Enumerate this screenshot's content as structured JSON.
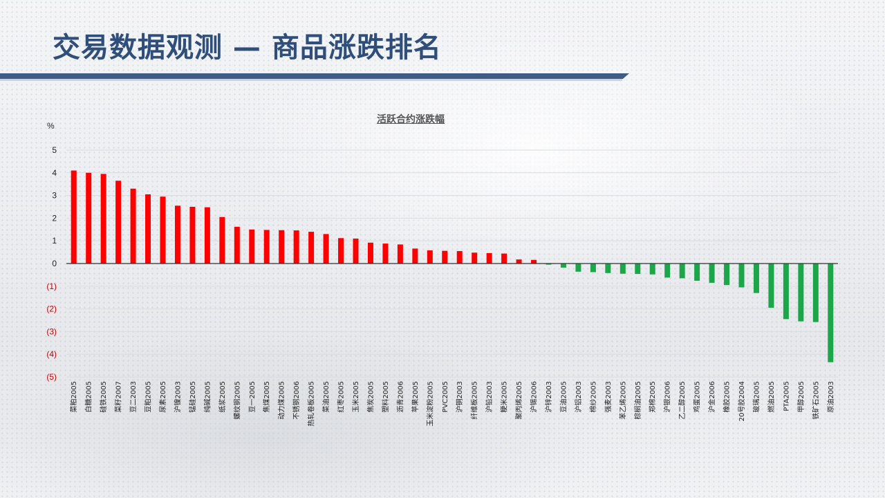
{
  "page": {
    "title": "交易数据观测 — 商品涨跌排名"
  },
  "colors": {
    "up": "#ff0000",
    "down": "#1ca64a",
    "title": "#2f4f7a",
    "negative_tick": "#c00000"
  },
  "chart_data": {
    "type": "bar",
    "title": "活跃合约涨跌幅",
    "ylabel": "%",
    "xlabel": "",
    "ylim": [
      -5,
      5
    ],
    "yticks": [
      {
        "value": 5,
        "label": "5"
      },
      {
        "value": 4,
        "label": "4"
      },
      {
        "value": 3,
        "label": "3"
      },
      {
        "value": 2,
        "label": "2"
      },
      {
        "value": 1,
        "label": "1"
      },
      {
        "value": 0,
        "label": "0"
      },
      {
        "value": -1,
        "label": "(1)"
      },
      {
        "value": -2,
        "label": "(2)"
      },
      {
        "value": -3,
        "label": "(3)"
      },
      {
        "value": -4,
        "label": "(4)"
      },
      {
        "value": -5,
        "label": "(5)"
      }
    ],
    "grid": true,
    "categories": [
      "菜粕2005",
      "白糖2005",
      "硅铁2005",
      "菜籽2007",
      "豆二2003",
      "豆粕2005",
      "尿素2005",
      "沪镍2003",
      "锰硅2005",
      "纯碱2005",
      "纸浆2005",
      "螺纹钢2005",
      "豆一2005",
      "焦煤2005",
      "动力煤2005",
      "不锈钢2006",
      "热轧卷板2005",
      "菜油2005",
      "红枣2005",
      "玉米2005",
      "焦炭2005",
      "塑料2005",
      "沥青2006",
      "苹果2005",
      "玉米淀粉2005",
      "PVC2005",
      "沪铜2003",
      "纤维板2005",
      "沪铅2003",
      "粳米2005",
      "聚丙烯2005",
      "沪锡2006",
      "沪锌2003",
      "豆油2005",
      "沪铝2003",
      "棉纱2005",
      "强麦2003",
      "苯乙烯2005",
      "棕榈油2005",
      "郑棉2005",
      "沪银2006",
      "乙二醇2005",
      "鸡蛋2005",
      "沪金2006",
      "橡胶2005",
      "20号胶2004",
      "玻璃2005",
      "燃油2005",
      "PTA2005",
      "甲醇2005",
      "铁矿石2005",
      "原油2003"
    ],
    "values": [
      4.1,
      4.0,
      3.95,
      3.65,
      3.3,
      3.05,
      2.95,
      2.55,
      2.5,
      2.48,
      2.05,
      1.62,
      1.5,
      1.48,
      1.47,
      1.46,
      1.4,
      1.3,
      1.12,
      1.1,
      0.92,
      0.88,
      0.84,
      0.66,
      0.58,
      0.56,
      0.55,
      0.48,
      0.46,
      0.44,
      0.18,
      0.16,
      -0.05,
      -0.18,
      -0.36,
      -0.38,
      -0.42,
      -0.45,
      -0.46,
      -0.48,
      -0.62,
      -0.65,
      -0.76,
      -0.85,
      -0.95,
      -1.05,
      -1.3,
      -1.95,
      -2.45,
      -2.55,
      -2.58,
      -4.35
    ]
  }
}
